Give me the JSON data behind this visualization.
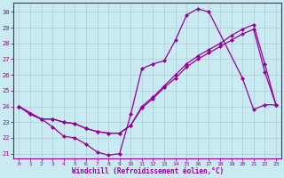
{
  "xlabel": "Windchill (Refroidissement éolien,°C)",
  "bg_color": "#c8eaf0",
  "grid_color": "#aaccdd",
  "line_color": "#990099",
  "xlim": [
    -0.5,
    23.5
  ],
  "ylim": [
    20.7,
    30.6
  ],
  "xtick_vals": [
    0,
    1,
    2,
    3,
    4,
    5,
    6,
    7,
    8,
    9,
    10,
    11,
    12,
    13,
    14,
    15,
    16,
    17,
    18,
    19,
    20,
    21,
    22,
    23
  ],
  "ytick_vals": [
    21,
    22,
    23,
    24,
    25,
    26,
    27,
    28,
    29,
    30
  ],
  "curve1_x": [
    0,
    1,
    2,
    3,
    4,
    5,
    6,
    7,
    8,
    9,
    10,
    11,
    12,
    13,
    14,
    15,
    16,
    17,
    20,
    21,
    22,
    23
  ],
  "curve1_y": [
    24.0,
    23.5,
    23.2,
    22.7,
    22.1,
    22.0,
    21.6,
    21.1,
    20.9,
    21.0,
    23.5,
    26.4,
    26.7,
    26.9,
    28.2,
    29.8,
    30.2,
    30.0,
    25.8,
    23.8,
    24.1,
    24.1
  ],
  "curve2_x": [
    0,
    1,
    2,
    3,
    4,
    5,
    6,
    7,
    8,
    9,
    10,
    11,
    12,
    13,
    14,
    15,
    16,
    17,
    18,
    19,
    20,
    21,
    22,
    23
  ],
  "curve2_y": [
    24.0,
    23.5,
    23.2,
    23.2,
    23.0,
    22.9,
    22.6,
    22.4,
    22.3,
    22.3,
    22.8,
    23.9,
    24.5,
    25.2,
    25.8,
    26.5,
    27.0,
    27.4,
    27.8,
    28.2,
    28.6,
    28.9,
    26.2,
    24.1
  ],
  "curve3_x": [
    0,
    2,
    3,
    4,
    5,
    6,
    7,
    8,
    9,
    10,
    11,
    12,
    13,
    14,
    15,
    16,
    17,
    18,
    19,
    20,
    21,
    22,
    23
  ],
  "curve3_y": [
    24.0,
    23.2,
    23.2,
    23.0,
    22.9,
    22.6,
    22.4,
    22.3,
    22.3,
    22.8,
    24.0,
    24.6,
    25.3,
    26.0,
    26.7,
    27.2,
    27.6,
    28.0,
    28.5,
    28.9,
    29.2,
    26.7,
    24.1
  ]
}
